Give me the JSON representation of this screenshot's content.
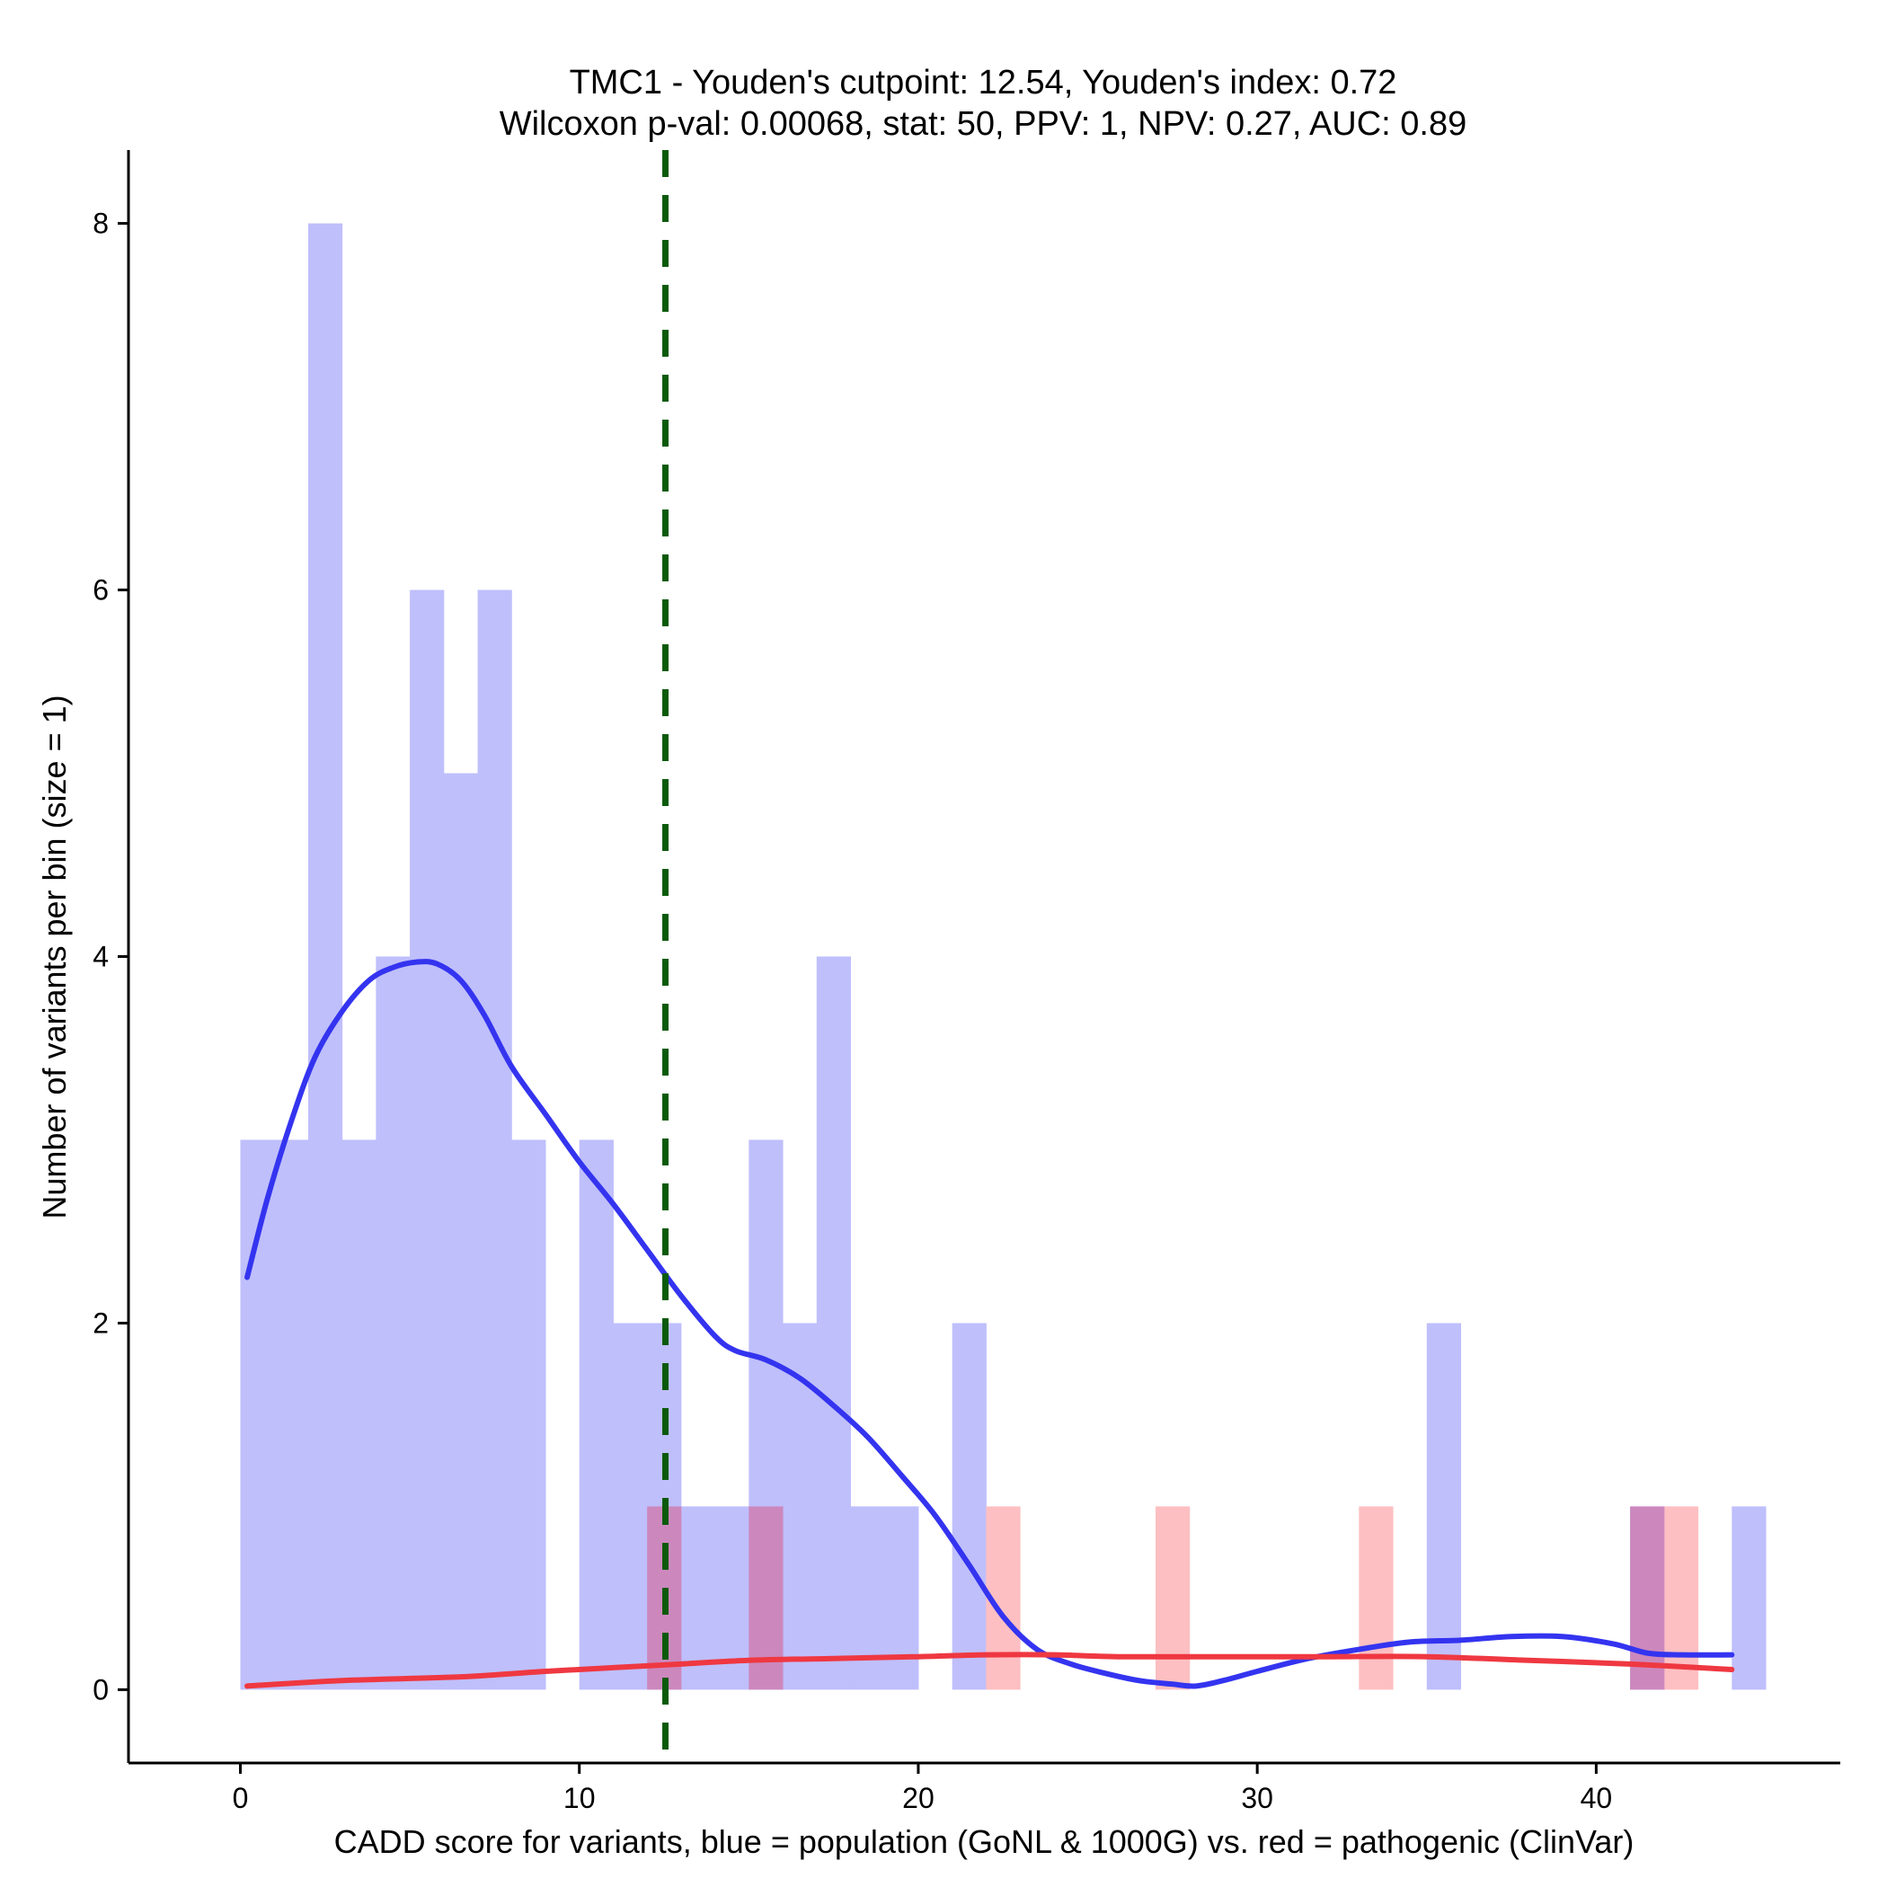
{
  "chart_data": {
    "type": "histogram",
    "title": "TMC1 - Youden's cutpoint: 12.54, Youden's index: 0.72",
    "subtitle": "Wilcoxon p-val: 0.00068, stat: 50, PPV: 1, NPV: 0.27, AUC: 0.89",
    "xlabel": "CADD score for variants, blue = population (GoNL & 1000G) vs. red = pathogenic (ClinVar)",
    "ylabel": "Number of variants per bin (size = 1)",
    "xlim": [
      -3.3,
      47.2
    ],
    "ylim": [
      -0.4,
      8.4
    ],
    "xticks": [
      0,
      10,
      20,
      30,
      40
    ],
    "yticks": [
      0,
      2,
      4,
      6,
      8
    ],
    "cutpoint": 12.54,
    "colors": {
      "population_bar": "#bfbffc",
      "pathogenic_bar": "#fdbfc2",
      "overlap_bar": "#cc88bd",
      "population_line": "#3434f0",
      "pathogenic_line": "#ef3841",
      "cutpoint_line": "#0b5a0b"
    },
    "series": [
      {
        "name": "population (GoNL & 1000G)",
        "bins": [
          {
            "x0": 0,
            "x1": 1,
            "count": 3
          },
          {
            "x0": 1,
            "x1": 2,
            "count": 3
          },
          {
            "x0": 2,
            "x1": 3,
            "count": 8
          },
          {
            "x0": 3,
            "x1": 4,
            "count": 3
          },
          {
            "x0": 4,
            "x1": 5,
            "count": 4
          },
          {
            "x0": 5,
            "x1": 6,
            "count": 6
          },
          {
            "x0": 6,
            "x1": 7,
            "count": 5
          },
          {
            "x0": 7,
            "x1": 8,
            "count": 6
          },
          {
            "x0": 8,
            "x1": 9,
            "count": 3
          },
          {
            "x0": 10,
            "x1": 11,
            "count": 3
          },
          {
            "x0": 11,
            "x1": 12,
            "count": 2
          },
          {
            "x0": 12,
            "x1": 13,
            "count": 2
          },
          {
            "x0": 13,
            "x1": 14,
            "count": 1
          },
          {
            "x0": 14,
            "x1": 15,
            "count": 1
          },
          {
            "x0": 15,
            "x1": 16,
            "count": 3
          },
          {
            "x0": 16,
            "x1": 17,
            "count": 2
          },
          {
            "x0": 17,
            "x1": 18,
            "count": 4
          },
          {
            "x0": 18,
            "x1": 19,
            "count": 1
          },
          {
            "x0": 19,
            "x1": 20,
            "count": 1
          },
          {
            "x0": 21,
            "x1": 22,
            "count": 2
          },
          {
            "x0": 35,
            "x1": 36,
            "count": 2
          },
          {
            "x0": 41,
            "x1": 42,
            "count": 1
          },
          {
            "x0": 44,
            "x1": 45,
            "count": 1
          }
        ],
        "density_curve": [
          [
            0.2,
            2.25
          ],
          [
            0.8,
            2.68
          ],
          [
            1.5,
            3.1
          ],
          [
            2.2,
            3.45
          ],
          [
            3.0,
            3.7
          ],
          [
            3.8,
            3.87
          ],
          [
            4.5,
            3.94
          ],
          [
            5.2,
            3.97
          ],
          [
            5.8,
            3.96
          ],
          [
            6.5,
            3.87
          ],
          [
            7.2,
            3.68
          ],
          [
            8.0,
            3.4
          ],
          [
            9.0,
            3.14
          ],
          [
            10.0,
            2.88
          ],
          [
            11.0,
            2.65
          ],
          [
            12.0,
            2.4
          ],
          [
            13.0,
            2.15
          ],
          [
            14.0,
            1.93
          ],
          [
            14.6,
            1.85
          ],
          [
            15.5,
            1.8
          ],
          [
            16.5,
            1.7
          ],
          [
            17.5,
            1.55
          ],
          [
            18.5,
            1.38
          ],
          [
            19.5,
            1.17
          ],
          [
            20.5,
            0.95
          ],
          [
            21.5,
            0.68
          ],
          [
            22.5,
            0.4
          ],
          [
            23.5,
            0.22
          ],
          [
            24.5,
            0.14
          ],
          [
            25.5,
            0.09
          ],
          [
            26.5,
            0.05
          ],
          [
            27.5,
            0.03
          ],
          [
            28.2,
            0.02
          ],
          [
            29.0,
            0.05
          ],
          [
            30.0,
            0.1
          ],
          [
            31.5,
            0.17
          ],
          [
            33.0,
            0.22
          ],
          [
            34.5,
            0.26
          ],
          [
            36.0,
            0.27
          ],
          [
            37.5,
            0.29
          ],
          [
            39.0,
            0.29
          ],
          [
            40.5,
            0.25
          ],
          [
            41.5,
            0.2
          ],
          [
            42.5,
            0.19
          ],
          [
            44.0,
            0.19
          ]
        ]
      },
      {
        "name": "pathogenic (ClinVar)",
        "bins": [
          {
            "x0": 12,
            "x1": 13,
            "count": 1
          },
          {
            "x0": 15,
            "x1": 16,
            "count": 1
          },
          {
            "x0": 22,
            "x1": 23,
            "count": 1
          },
          {
            "x0": 27,
            "x1": 28,
            "count": 1
          },
          {
            "x0": 33,
            "x1": 34,
            "count": 1
          },
          {
            "x0": 41,
            "x1": 42,
            "count": 1
          },
          {
            "x0": 42,
            "x1": 43,
            "count": 1
          }
        ],
        "density_curve": [
          [
            0.2,
            0.02
          ],
          [
            3.0,
            0.05
          ],
          [
            6.5,
            0.07
          ],
          [
            9.0,
            0.1
          ],
          [
            11.0,
            0.12
          ],
          [
            13.0,
            0.14
          ],
          [
            15.0,
            0.16
          ],
          [
            17.5,
            0.17
          ],
          [
            20.0,
            0.18
          ],
          [
            22.0,
            0.19
          ],
          [
            24.0,
            0.19
          ],
          [
            26.0,
            0.18
          ],
          [
            29.0,
            0.18
          ],
          [
            32.0,
            0.18
          ],
          [
            35.0,
            0.18
          ],
          [
            38.0,
            0.16
          ],
          [
            41.0,
            0.14
          ],
          [
            44.0,
            0.11
          ]
        ]
      }
    ]
  }
}
